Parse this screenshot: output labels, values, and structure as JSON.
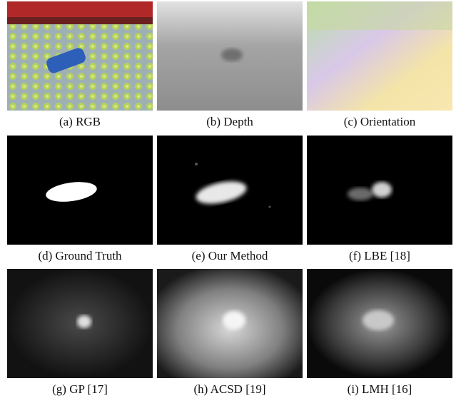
{
  "panels": [
    {
      "caption": "(a) RGB"
    },
    {
      "caption": "(b) Depth"
    },
    {
      "caption": "(c) Orientation"
    },
    {
      "caption": "(d) Ground Truth"
    },
    {
      "caption": "(e) Our Method"
    },
    {
      "caption": "(f) LBE [18]"
    },
    {
      "caption": "(g) GP [17]"
    },
    {
      "caption": "(h) ACSD [19]"
    },
    {
      "caption": "(i) LMH [16]"
    }
  ]
}
